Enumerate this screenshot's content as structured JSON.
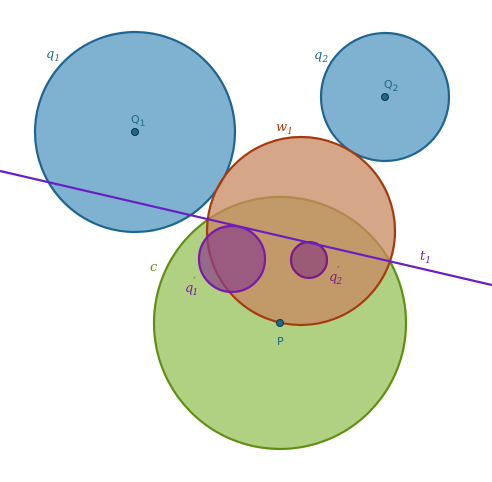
{
  "labels": {
    "q1": "q",
    "q1_sub": "1",
    "q2": "q",
    "q2_sub": "2",
    "Q1": "Q",
    "Q1_sub": "1",
    "Q2": "Q",
    "Q2_sub": "2",
    "w1": "w",
    "w1_sub": "1",
    "t1": "t",
    "t1_sub": "1",
    "c": "c",
    "P": "P",
    "q1p": "q",
    "q1p_prime": "′",
    "q1p_sub": "1",
    "q2p": "q",
    "q2p_prime": "′",
    "q2p_sub": "2"
  },
  "colors": {
    "blue_fill": "#7fb2d1",
    "blue_stroke": "#1f6591",
    "orange_fill": "#d19f80",
    "orange_stroke": "#a53a0d",
    "green_fill": "#8fbc4a",
    "green_stroke": "#5f8f13",
    "purple_fill": "#8b4a7a",
    "purple_stroke": "#7a1aa6",
    "line": "#6a1fc2",
    "point": "#1e6a86",
    "point_label": "#1e6a86"
  }
}
